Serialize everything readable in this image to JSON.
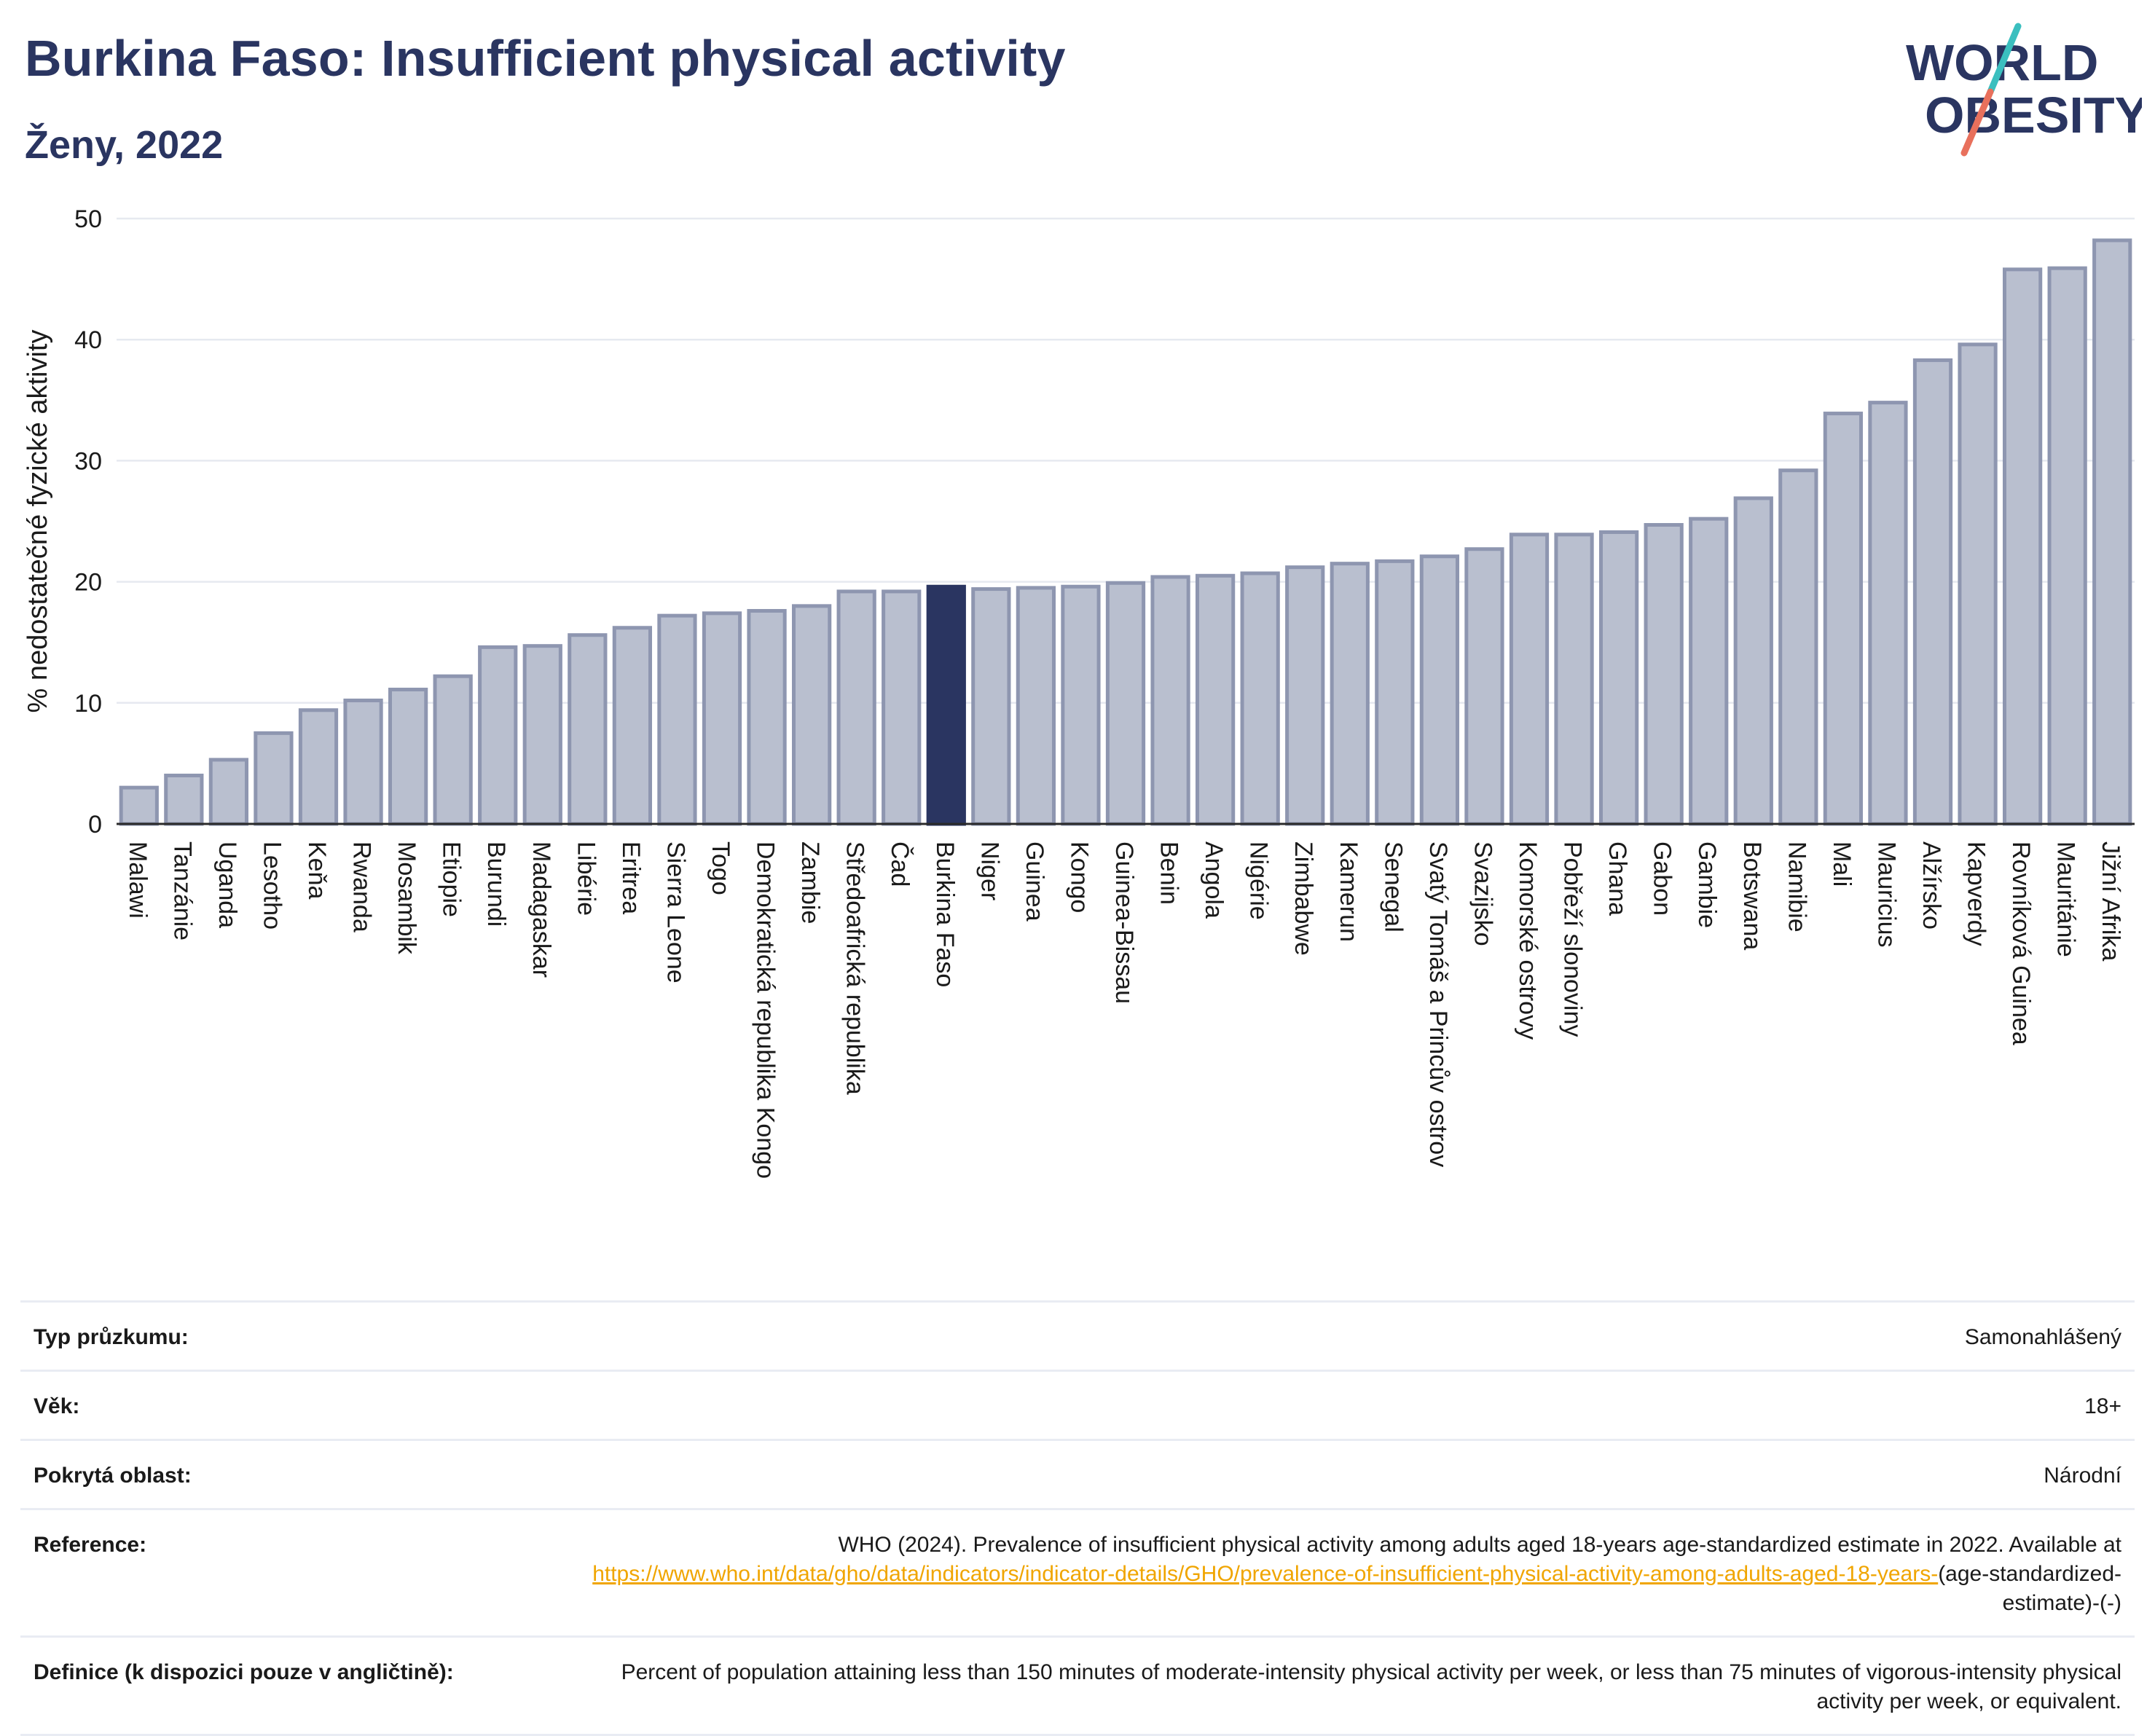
{
  "header": {
    "title": "Burkina Faso: Insufficient physical activity",
    "subtitle": "Ženy, 2022"
  },
  "logo": {
    "line1": "WORLD",
    "line2": "OBESITY",
    "colors": {
      "text": "#2a3561",
      "slash_top": "#3bbfbf",
      "slash_bottom": "#e8705c"
    }
  },
  "colors": {
    "bar": "#b9bfcf",
    "bar_stroke": "#8e96b0",
    "highlight": "#2a3561",
    "grid": "#e6e9f0",
    "axis": "#2a2a2a"
  },
  "chart_data": {
    "type": "bar",
    "title": "Burkina Faso: Insufficient physical activity",
    "subtitle": "Ženy, 2022",
    "xlabel": "",
    "ylabel": "% nedostatečné fyzické aktivity",
    "ylim": [
      0,
      50
    ],
    "yticks": [
      0,
      10,
      20,
      30,
      40,
      50
    ],
    "grid": true,
    "highlight": "Burkina Faso",
    "categories": [
      "Malawi",
      "Tanzánie",
      "Uganda",
      "Lesotho",
      "Keňa",
      "Rwanda",
      "Mosambik",
      "Etiopie",
      "Burundi",
      "Madagaskar",
      "Libérie",
      "Eritrea",
      "Sierra Leone",
      "Togo",
      "Demokratická republika Kongo",
      "Zambie",
      "Středoafrická republika",
      "Čad",
      "Burkina Faso",
      "Niger",
      "Guinea",
      "Kongo",
      "Guinea-Bissau",
      "Benin",
      "Angola",
      "Nigérie",
      "Zimbabwe",
      "Kamerun",
      "Senegal",
      "Svatý Tomáš a Princův ostrov",
      "Svazijsko",
      "Komorské ostrovy",
      "Pobřeží slonoviny",
      "Ghana",
      "Gabon",
      "Gambie",
      "Botswana",
      "Namibie",
      "Mali",
      "Mauricius",
      "Alžírsko",
      "Kapverdy",
      "Rovníková Guinea",
      "Mauritánie",
      "Jižní Afrika"
    ],
    "values": [
      3.0,
      4.0,
      5.3,
      7.5,
      9.4,
      10.2,
      11.1,
      12.2,
      14.6,
      14.7,
      15.6,
      16.2,
      17.2,
      17.4,
      17.6,
      18.0,
      19.2,
      19.2,
      19.6,
      19.4,
      19.5,
      19.6,
      19.9,
      20.4,
      20.5,
      20.7,
      21.2,
      21.5,
      21.7,
      22.1,
      22.7,
      23.9,
      23.9,
      24.1,
      24.7,
      25.2,
      26.9,
      29.2,
      33.9,
      34.8,
      38.3,
      39.6,
      45.8,
      45.9,
      48.2
    ]
  },
  "info": {
    "survey_label": "Typ průzkumu:",
    "survey_value": "Samonahlášený",
    "age_label": "Věk:",
    "age_value": "18+",
    "area_label": "Pokrytá oblast:",
    "area_value": "Národní",
    "reference_label": "Reference:",
    "reference_text": "WHO (2024). Prevalence of insufficient physical activity among adults aged 18-years age-standardized estimate in 2022. Available at",
    "reference_link": "https://www.who.int/data/gho/data/indicators/indicator-details/GHO/prevalence-of-insufficient-physical-activity-among-adults-aged-18-years-",
    "reference_suffix": "(age-standardized-estimate)-(-)",
    "definition_label": "Definice (k dispozici pouze v angličtině):",
    "definition_value": "Percent of population attaining less than 150 minutes of moderate-intensity physical activity per week, or less than 75 minutes of vigorous-intensity physical activity per week, or equivalent."
  }
}
